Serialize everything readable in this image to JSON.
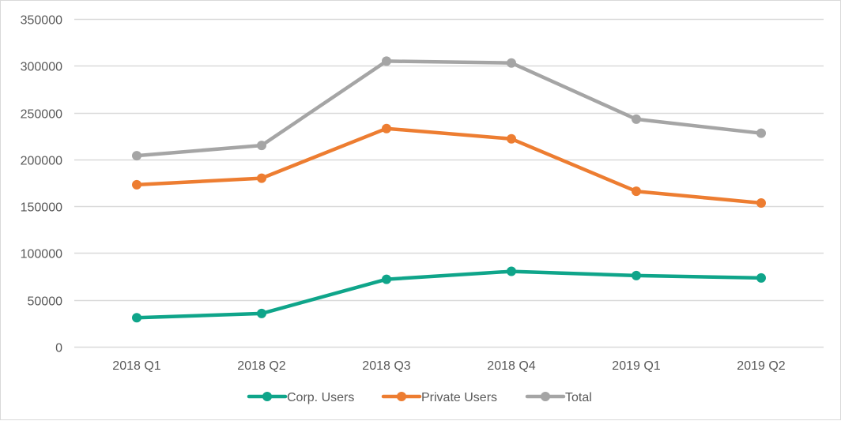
{
  "chart_data": {
    "type": "line",
    "title": "",
    "xlabel": "",
    "ylabel": "",
    "categories": [
      "2018 Q1",
      "2018 Q2",
      "2018 Q3",
      "2018 Q4",
      "2019 Q1",
      "2019 Q2"
    ],
    "ylim": [
      0,
      350000
    ],
    "yticks": [
      "0",
      "50000",
      "100000",
      "150000",
      "200000",
      "250000",
      "300000",
      "350000"
    ],
    "ytick_values": [
      0,
      50000,
      100000,
      150000,
      200000,
      250000,
      300000,
      350000
    ],
    "grid": true,
    "legend_position": "bottom",
    "series": [
      {
        "name": "Corp. Users",
        "color": "#0fa58a",
        "values": [
          31000,
          35500,
          72000,
          80500,
          76000,
          73500
        ]
      },
      {
        "name": "Private Users",
        "color": "#ed7d31",
        "values": [
          173000,
          180000,
          233000,
          222000,
          166000,
          153500
        ]
      },
      {
        "name": "Total",
        "color": "#a5a5a5",
        "values": [
          204000,
          215000,
          305000,
          303000,
          243000,
          228000
        ]
      }
    ]
  }
}
